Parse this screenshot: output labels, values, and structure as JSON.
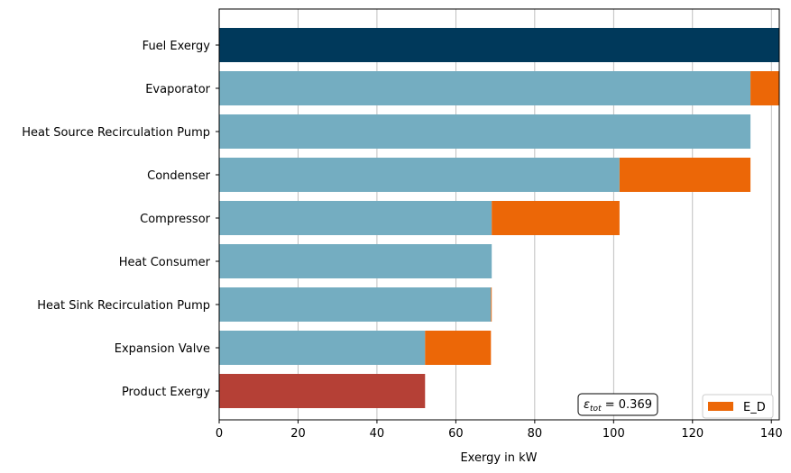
{
  "chart_data": {
    "type": "bar",
    "orientation": "horizontal",
    "stacked": true,
    "categories": [
      "Fuel Exergy",
      "Evaporator",
      "Heat Source Recirculation Pump",
      "Condenser",
      "Compressor",
      "Heat Consumer",
      "Heat Sink Recirculation Pump",
      "Expansion Valve",
      "Product Exergy"
    ],
    "series": [
      {
        "role": "base",
        "values": [
          142,
          134.7,
          134.7,
          101.5,
          69.1,
          69.1,
          68.9,
          52.2,
          52.2
        ],
        "colors": [
          "#00395b",
          "#74adc1",
          "#74adc1",
          "#74adc1",
          "#74adc1",
          "#74adc1",
          "#74adc1",
          "#74adc1",
          "#b54036"
        ]
      },
      {
        "name": "E_D",
        "values": [
          0,
          7.3,
          0,
          33.2,
          32.4,
          0,
          0.2,
          16.7,
          0
        ],
        "color": "#ec6707"
      }
    ],
    "xlabel": "Exergy in kW",
    "xlim": [
      0,
      142
    ],
    "xticks": [
      0,
      20,
      40,
      60,
      80,
      100,
      120,
      140
    ],
    "grid": "x",
    "legend": {
      "position": "lower-right",
      "entries": [
        "E_D"
      ]
    },
    "annotation": {
      "text_symbol": "ε",
      "text_sub": "tot",
      "text_value": " = 0.369",
      "value": 0.369,
      "position": "lower-center-right"
    }
  }
}
